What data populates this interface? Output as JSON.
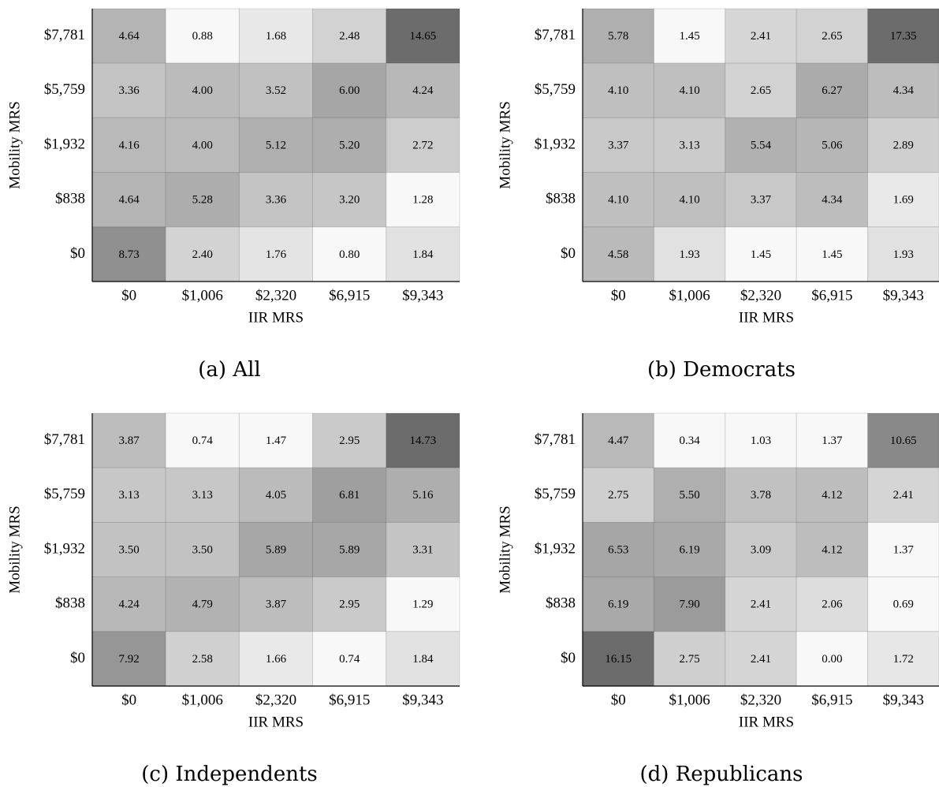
{
  "chart_data": [
    {
      "type": "heatmap",
      "caption": "(a) All",
      "x_label": "IIR MRS",
      "y_label": "Mobility MRS",
      "x_categories": [
        "$0",
        "$1,006",
        "$2,320",
        "$6,915",
        "$9,343"
      ],
      "y_categories": [
        "$7,781",
        "$5,759",
        "$1,932",
        "$838",
        "$0"
      ],
      "values": [
        [
          4.64,
          0.88,
          1.68,
          2.48,
          14.65
        ],
        [
          3.36,
          4.0,
          3.52,
          6.0,
          4.24
        ],
        [
          4.16,
          4.0,
          5.12,
          5.2,
          2.72
        ],
        [
          4.64,
          5.28,
          3.36,
          3.2,
          1.28
        ],
        [
          8.73,
          2.4,
          1.76,
          0.8,
          1.84
        ]
      ],
      "value_labels": [
        [
          "4.64",
          "0.88",
          "1.68",
          "2.48",
          "14.65"
        ],
        [
          "3.36",
          "4.00",
          "3.52",
          "6.00",
          "4.24"
        ],
        [
          "4.16",
          "4.00",
          "5.12",
          "5.20",
          "2.72"
        ],
        [
          "4.64",
          "5.28",
          "3.36",
          "3.20",
          "1.28"
        ],
        [
          "8.73",
          "2.40",
          "1.76",
          "0.80",
          "1.84"
        ]
      ]
    },
    {
      "type": "heatmap",
      "caption": "(b) Democrats",
      "x_label": "IIR MRS",
      "y_label": "Mobility MRS",
      "x_categories": [
        "$0",
        "$1,006",
        "$2,320",
        "$6,915",
        "$9,343"
      ],
      "y_categories": [
        "$7,781",
        "$5,759",
        "$1,932",
        "$838",
        "$0"
      ],
      "values": [
        [
          5.78,
          1.45,
          2.41,
          2.65,
          17.35
        ],
        [
          4.1,
          4.1,
          2.65,
          6.27,
          4.34
        ],
        [
          3.37,
          3.13,
          5.54,
          5.06,
          2.89
        ],
        [
          4.1,
          4.1,
          3.37,
          4.34,
          1.69
        ],
        [
          4.58,
          1.93,
          1.45,
          1.45,
          1.93
        ]
      ],
      "value_labels": [
        [
          "5.78",
          "1.45",
          "2.41",
          "2.65",
          "17.35"
        ],
        [
          "4.10",
          "4.10",
          "2.65",
          "6.27",
          "4.34"
        ],
        [
          "3.37",
          "3.13",
          "5.54",
          "5.06",
          "2.89"
        ],
        [
          "4.10",
          "4.10",
          "3.37",
          "4.34",
          "1.69"
        ],
        [
          "4.58",
          "1.93",
          "1.45",
          "1.45",
          "1.93"
        ]
      ]
    },
    {
      "type": "heatmap",
      "caption": "(c) Independents",
      "x_label": "IIR MRS",
      "y_label": "Mobility MRS",
      "x_categories": [
        "$0",
        "$1,006",
        "$2,320",
        "$6,915",
        "$9,343"
      ],
      "y_categories": [
        "$7,781",
        "$5,759",
        "$1,932",
        "$838",
        "$0"
      ],
      "values": [
        [
          3.87,
          0.74,
          1.47,
          2.95,
          14.73
        ],
        [
          3.13,
          3.13,
          4.05,
          6.81,
          5.16
        ],
        [
          3.5,
          3.5,
          5.89,
          5.89,
          3.31
        ],
        [
          4.24,
          4.79,
          3.87,
          2.95,
          1.29
        ],
        [
          7.92,
          2.58,
          1.66,
          0.74,
          1.84
        ]
      ],
      "value_labels": [
        [
          "3.87",
          "0.74",
          "1.47",
          "2.95",
          "14.73"
        ],
        [
          "3.13",
          "3.13",
          "4.05",
          "6.81",
          "5.16"
        ],
        [
          "3.50",
          "3.50",
          "5.89",
          "5.89",
          "3.31"
        ],
        [
          "4.24",
          "4.79",
          "3.87",
          "2.95",
          "1.29"
        ],
        [
          "7.92",
          "2.58",
          "1.66",
          "0.74",
          "1.84"
        ]
      ]
    },
    {
      "type": "heatmap",
      "caption": "(d) Republicans",
      "x_label": "IIR MRS",
      "y_label": "Mobility MRS",
      "x_categories": [
        "$0",
        "$1,006",
        "$2,320",
        "$6,915",
        "$9,343"
      ],
      "y_categories": [
        "$7,781",
        "$5,759",
        "$1,932",
        "$838",
        "$0"
      ],
      "values": [
        [
          4.47,
          0.34,
          1.03,
          1.37,
          10.65
        ],
        [
          2.75,
          5.5,
          3.78,
          4.12,
          2.41
        ],
        [
          6.53,
          6.19,
          3.09,
          4.12,
          1.37
        ],
        [
          6.19,
          7.9,
          2.41,
          2.06,
          0.69
        ],
        [
          16.15,
          2.75,
          2.41,
          0.0,
          1.72
        ]
      ],
      "value_labels": [
        [
          "4.47",
          "0.34",
          "1.03",
          "1.37",
          "10.65"
        ],
        [
          "2.75",
          "5.50",
          "3.78",
          "4.12",
          "2.41"
        ],
        [
          "6.53",
          "6.19",
          "3.09",
          "4.12",
          "1.37"
        ],
        [
          "6.19",
          "7.90",
          "2.41",
          "2.06",
          "0.69"
        ],
        [
          "16.15",
          "2.75",
          "2.41",
          "0.00",
          "1.72"
        ]
      ]
    }
  ]
}
